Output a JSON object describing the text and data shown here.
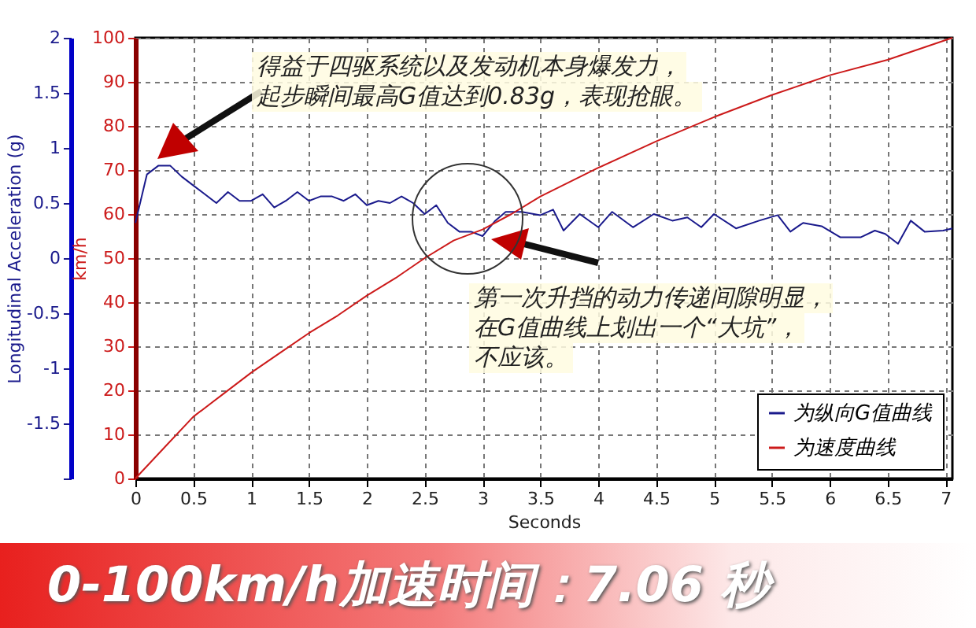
{
  "chart_data": {
    "type": "line",
    "xlabel": "Seconds",
    "ylabel": "Longitudinal Acceleration (g)",
    "y2label": "km/h",
    "xlim": [
      0,
      7.06
    ],
    "xticks": [
      0,
      0.5,
      1,
      1.5,
      2,
      2.5,
      3,
      3.5,
      4,
      4.5,
      5,
      5.5,
      6,
      6.5,
      7
    ],
    "ylim": [
      -2,
      2
    ],
    "yticks": [
      {
        "value": -2,
        "label": null
      },
      -1.5,
      -1,
      -0.5,
      0,
      0.5,
      1,
      1.5,
      2
    ],
    "y2lim": [
      0,
      100
    ],
    "y2ticks": [
      0,
      10,
      20,
      30,
      40,
      50,
      60,
      70,
      80,
      90,
      100
    ],
    "grid": true,
    "legend": "bottom right",
    "series": [
      {
        "name": "为纵向G值曲线",
        "color": "#1a1a8c",
        "x": [
          0,
          0.1,
          0.2,
          0.3,
          0.4,
          0.5,
          0.6,
          0.7,
          0.8,
          0.9,
          1.0,
          1.1,
          1.2,
          1.3,
          1.4,
          1.5,
          1.6,
          1.7,
          1.8,
          1.9,
          2.0,
          2.1,
          2.2,
          2.3,
          2.4,
          2.5,
          2.6,
          2.7,
          2.8,
          2.9,
          3.0,
          3.11,
          3.2,
          3.34,
          3.5,
          3.61,
          3.7,
          3.84,
          4.0,
          4.12,
          4.3,
          4.48,
          4.64,
          4.77,
          4.89,
          5.0,
          5.19,
          5.39,
          5.55,
          5.66,
          5.77,
          5.93,
          6.09,
          6.27,
          6.39,
          6.48,
          6.59,
          6.7,
          6.82,
          6.98,
          7.06
        ],
        "values": [
          0.32,
          0.76,
          0.84,
          0.84,
          0.74,
          0.66,
          0.58,
          0.5,
          0.6,
          0.52,
          0.52,
          0.58,
          0.46,
          0.52,
          0.6,
          0.52,
          0.56,
          0.56,
          0.52,
          0.58,
          0.48,
          0.52,
          0.5,
          0.56,
          0.5,
          0.4,
          0.48,
          0.32,
          0.24,
          0.24,
          0.2,
          0.34,
          0.42,
          0.42,
          0.39,
          0.44,
          0.25,
          0.4,
          0.28,
          0.42,
          0.28,
          0.4,
          0.34,
          0.37,
          0.28,
          0.4,
          0.27,
          0.34,
          0.39,
          0.24,
          0.32,
          0.29,
          0.19,
          0.19,
          0.25,
          0.22,
          0.13,
          0.34,
          0.24,
          0.25,
          0.27
        ]
      },
      {
        "name": "为速度曲线",
        "color": "#cc1a1a",
        "axis": "y2",
        "x": [
          0,
          0.25,
          0.5,
          0.75,
          1.0,
          1.25,
          1.5,
          1.75,
          2.0,
          2.25,
          2.5,
          2.75,
          3.0,
          3.25,
          3.5,
          4.0,
          4.5,
          5.0,
          5.5,
          6.0,
          6.5,
          7.06
        ],
        "values": [
          0,
          7,
          14,
          19,
          24,
          28.5,
          33,
          37,
          41.5,
          45.5,
          50,
          54,
          56.5,
          60,
          64,
          70.5,
          76.5,
          82,
          87,
          91.5,
          95,
          100
        ]
      }
    ],
    "annotations": [
      "得益于四驱系统以及发动机本身爆发力，",
      "起步瞬间最高G值达到0.83g，表现抢眼。",
      "第一次升挡的动力传递间隙明显，",
      "在G值曲线上划出一个“大坑”，",
      "不应该。",
      "0-100km/h加速时间：7.06 秒"
    ]
  }
}
